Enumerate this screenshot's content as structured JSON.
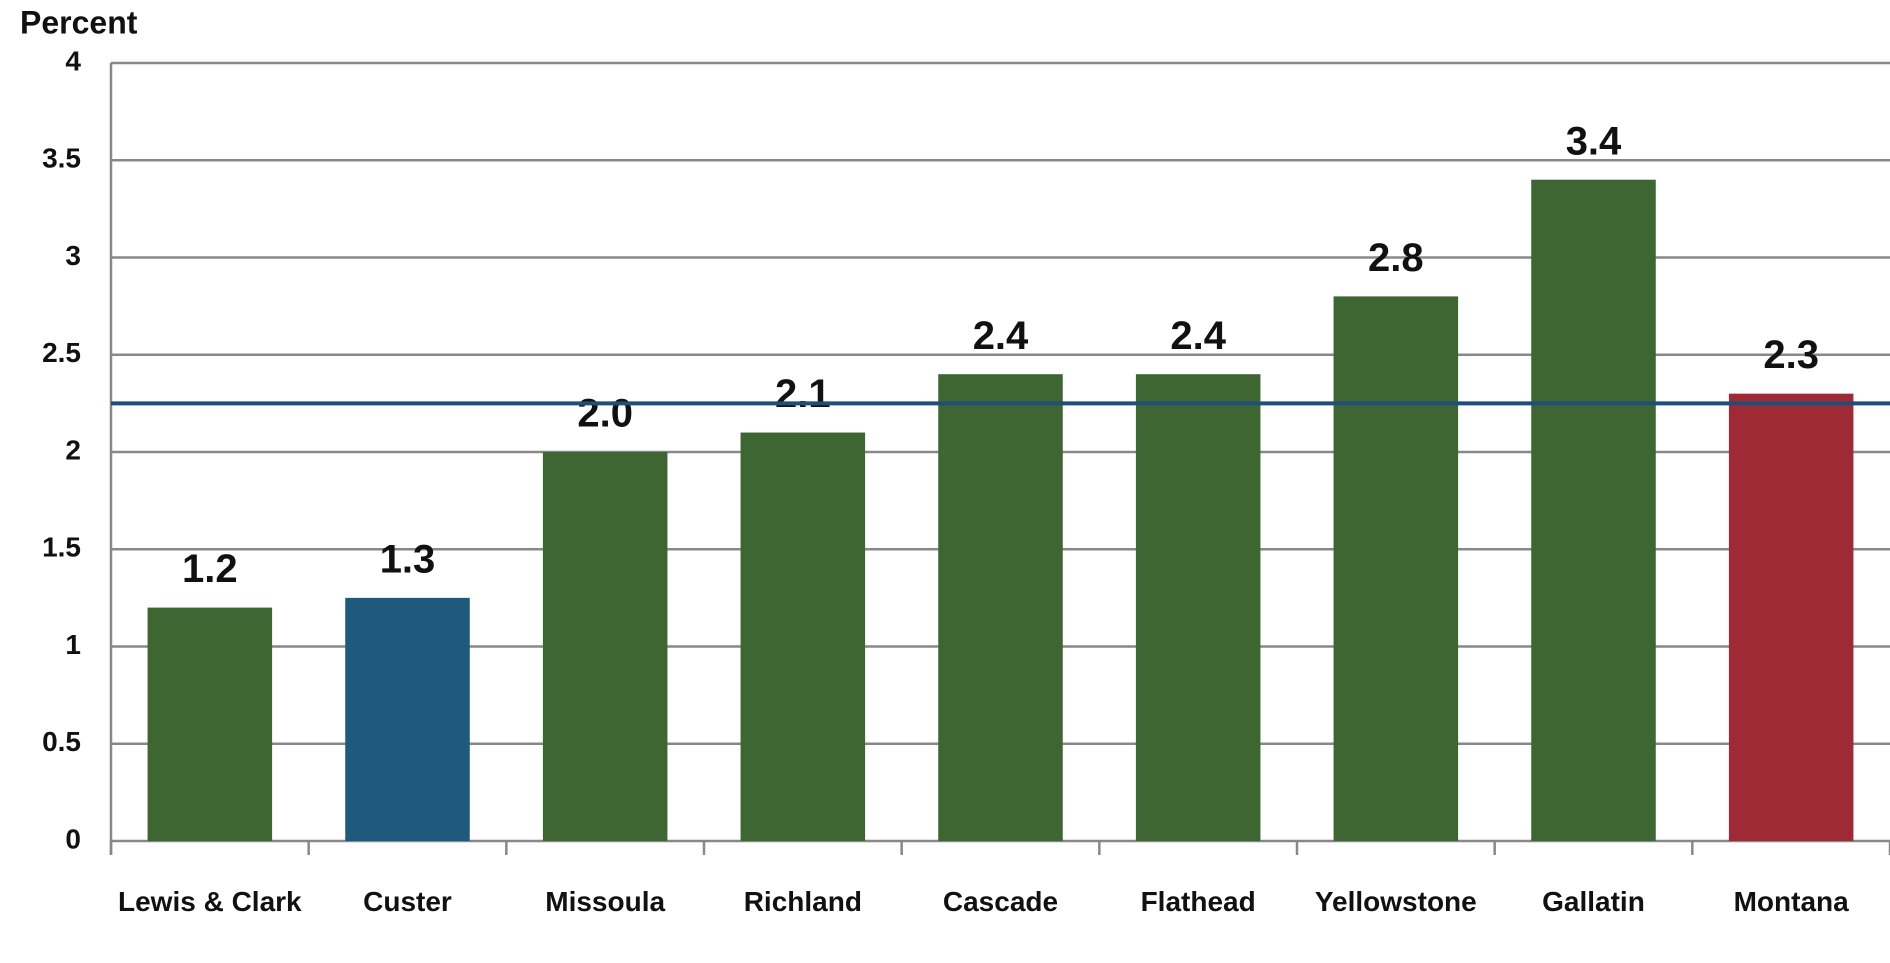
{
  "chart_data": {
    "type": "bar",
    "y_label": "Percent",
    "categories": [
      "Lewis & Clark",
      "Custer",
      "Missoula",
      "Richland",
      "Cascade",
      "Flathead",
      "Yellowstone",
      "Gallatin",
      "Montana"
    ],
    "values": [
      1.2,
      1.25,
      2.0,
      2.1,
      2.4,
      2.4,
      2.8,
      3.4,
      2.3
    ],
    "value_labels": [
      "1.2",
      "1.3",
      "2.0",
      "2.1",
      "2.4",
      "2.4",
      "2.8",
      "3.4",
      "2.3"
    ],
    "colors": [
      "#3d6632",
      "#1f5a7d",
      "#3d6632",
      "#3d6632",
      "#3d6632",
      "#3d6632",
      "#3d6632",
      "#3d6632",
      "#9e2a36"
    ],
    "reference_line": {
      "value": 2.25,
      "color": "#1f4e79"
    },
    "ylim": [
      0,
      4
    ],
    "yticks": [
      0,
      0.5,
      1,
      1.5,
      2,
      2.5,
      3,
      3.5,
      4
    ],
    "grid": true
  }
}
